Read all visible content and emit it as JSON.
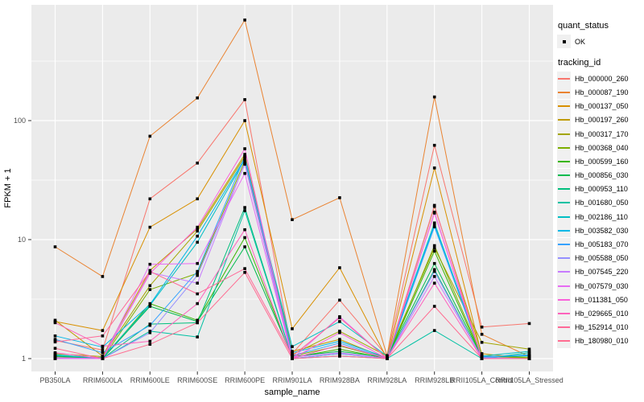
{
  "figure": {
    "background": "#FFFFFF",
    "panel_background": "#EBEBEB",
    "grid_color": "#FFFFFF",
    "axis_text_color": "#4D4D4D",
    "tick_color": "#333333",
    "point_color": "#000000"
  },
  "chart_data": {
    "type": "line",
    "title": "",
    "xlabel": "sample_name",
    "ylabel": "FPKM + 1",
    "x_categories": [
      "PB350LA",
      "RRIM600LA",
      "RRIM600LE",
      "RRIM600SE",
      "RRIM600PE",
      "RRIM901LA",
      "RRIM928BA",
      "RRIM928LA",
      "RRIM928LB",
      "RRII105LA_Control",
      "RRII105LA_Stressed"
    ],
    "y_axis": {
      "scale": "log10",
      "major_ticks": [
        1,
        10,
        100
      ],
      "minor_gridlines": [
        3.162,
        31.623,
        316.228
      ],
      "range_approx": [
        0.73,
        940
      ]
    },
    "grid": true,
    "legend_position": "right",
    "legend": {
      "quant_status_title": "quant_status",
      "quant_status_items": [
        {
          "label": "OK",
          "marker": "black-point"
        }
      ],
      "tracking_id_title": "tracking_id"
    },
    "series": [
      {
        "name": "Hb_000000_260",
        "color": "#F8766D",
        "values": [
          1.42,
          1.18,
          22.0,
          44.0,
          150,
          1.1,
          3.1,
          1.05,
          62.0,
          1.84,
          1.97
        ]
      },
      {
        "name": "Hb_000087_190",
        "color": "#EA8331",
        "values": [
          8.7,
          4.9,
          74.0,
          155.0,
          700,
          14.7,
          22.5,
          1.06,
          158.0,
          1.6,
          1.04
        ]
      },
      {
        "name": "Hb_000137_050",
        "color": "#D89000",
        "values": [
          2.05,
          1.72,
          12.7,
          22.0,
          100,
          1.78,
          5.8,
          1.0,
          40.0,
          1.06,
          1.0
        ]
      },
      {
        "name": "Hb_000197_260",
        "color": "#C09B00",
        "values": [
          2.1,
          1.05,
          5.5,
          12.3,
          52,
          1.15,
          1.45,
          1.0,
          19.0,
          1.1,
          1.0
        ]
      },
      {
        "name": "Hb_000317_170",
        "color": "#A3A500",
        "values": [
          1.1,
          1.04,
          4.1,
          11.8,
          50,
          1.08,
          1.7,
          1.05,
          8.5,
          1.37,
          1.2
        ]
      },
      {
        "name": "Hb_000368_040",
        "color": "#7CAE00",
        "values": [
          1.04,
          1.0,
          3.8,
          5.2,
          46,
          1.05,
          1.28,
          1.0,
          8.9,
          1.05,
          1.02
        ]
      },
      {
        "name": "Hb_000599_160",
        "color": "#39B600",
        "values": [
          1.02,
          1.0,
          2.9,
          2.1,
          10.4,
          1.02,
          1.2,
          1.0,
          8.0,
          1.02,
          1.0
        ]
      },
      {
        "name": "Hb_000856_030",
        "color": "#00BB4E",
        "values": [
          1.05,
          1.0,
          2.75,
          2.05,
          8.7,
          1.04,
          1.15,
          1.02,
          6.3,
          1.03,
          1.05
        ]
      },
      {
        "name": "Hb_000953_110",
        "color": "#00BF7D",
        "values": [
          1.0,
          1.0,
          1.95,
          2.0,
          18.6,
          1.0,
          1.1,
          1.0,
          5.6,
          1.0,
          1.0
        ]
      },
      {
        "name": "Hb_001680_050",
        "color": "#00C1A3",
        "values": [
          1.08,
          1.0,
          1.7,
          1.52,
          17.5,
          1.0,
          1.05,
          1.0,
          1.72,
          1.0,
          1.12
        ]
      },
      {
        "name": "Hb_002186_110",
        "color": "#00BFC4",
        "values": [
          1.06,
          1.02,
          2.8,
          9.5,
          47,
          1.26,
          2.05,
          1.05,
          13.8,
          1.05,
          1.15
        ]
      },
      {
        "name": "Hb_003582_030",
        "color": "#00B8E7",
        "values": [
          1.55,
          1.25,
          2.85,
          10.7,
          48,
          1.12,
          1.4,
          1.02,
          13.2,
          1.02,
          1.08
        ]
      },
      {
        "name": "Hb_005183_070",
        "color": "#35A2FF",
        "values": [
          1.45,
          1.12,
          1.9,
          5.4,
          50,
          1.06,
          1.35,
          1.0,
          12.8,
          1.04,
          1.06
        ]
      },
      {
        "name": "Hb_005588_050",
        "color": "#9590FF",
        "values": [
          1.0,
          1.0,
          1.65,
          5.0,
          43,
          1.0,
          1.1,
          1.0,
          5.4,
          1.0,
          1.0
        ]
      },
      {
        "name": "Hb_007545_220",
        "color": "#C77CFF",
        "values": [
          1.02,
          1.0,
          5.3,
          4.3,
          44,
          1.03,
          1.12,
          1.0,
          4.9,
          1.02,
          1.0
        ]
      },
      {
        "name": "Hb_007579_030",
        "color": "#E76BF3",
        "values": [
          1.0,
          1.0,
          6.2,
          6.3,
          36,
          1.0,
          2.25,
          1.0,
          17.0,
          1.0,
          1.0
        ]
      },
      {
        "name": "Hb_011381_050",
        "color": "#FA62DB",
        "values": [
          1.12,
          1.0,
          5.2,
          12.7,
          58,
          1.0,
          1.65,
          1.0,
          16.7,
          1.0,
          1.0
        ]
      },
      {
        "name": "Hb_029665_010",
        "color": "#FF62BC",
        "values": [
          2.0,
          1.27,
          1.4,
          2.9,
          12.1,
          1.0,
          1.3,
          1.0,
          4.3,
          1.0,
          1.0
        ]
      },
      {
        "name": "Hb_152914_010",
        "color": "#FF6A98",
        "values": [
          1.38,
          1.55,
          5.4,
          3.5,
          5.7,
          1.05,
          2.2,
          1.0,
          19.4,
          1.0,
          1.0
        ]
      },
      {
        "name": "Hb_180980_010",
        "color": "#FF6C91",
        "values": [
          1.22,
          1.0,
          1.32,
          2.0,
          5.3,
          1.0,
          1.05,
          1.0,
          2.75,
          1.0,
          1.0
        ]
      }
    ]
  }
}
